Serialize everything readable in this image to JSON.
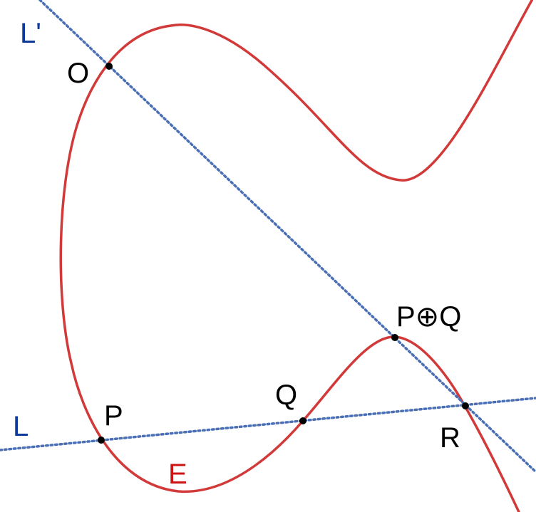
{
  "labels": {
    "line_l": "L",
    "line_l_prime": "L'",
    "curve": "E",
    "point_o": "O",
    "point_p": "P",
    "point_q": "Q",
    "point_r": "R",
    "point_sum": "P⊕Q"
  },
  "colors": {
    "curve": "#d23a3a",
    "line": "#4a6fb5",
    "point": "#000000",
    "line_label": "#0b3a9a",
    "curve_label": "#cc1414",
    "point_label": "#000000"
  }
}
